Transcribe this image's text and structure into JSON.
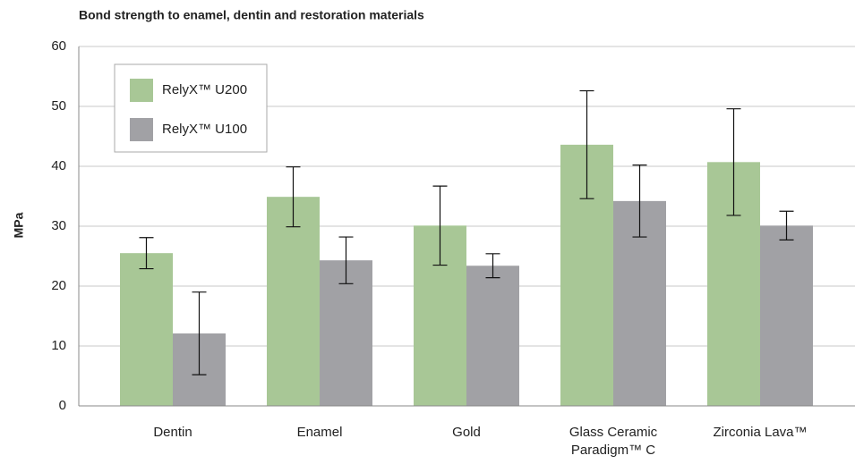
{
  "chart_data": {
    "type": "bar",
    "title": "Bond strength to enamel, dentin and restoration materials",
    "y_label": "MPa",
    "categories": [
      "Dentin",
      "Enamel",
      "Gold",
      "Glass Ceramic Paradigm™ C",
      "Zirconia Lava™"
    ],
    "series": [
      {
        "name": "RelyX™ U200",
        "color": "#a8c796",
        "values": [
          25.5,
          34.9,
          30.1,
          43.6,
          40.7
        ],
        "errors": [
          2.6,
          5.0,
          6.6,
          9.0,
          8.9
        ]
      },
      {
        "name": "RelyX™ U100",
        "color": "#a1a1a5",
        "values": [
          12.1,
          24.3,
          23.4,
          34.2,
          30.1
        ],
        "errors": [
          6.9,
          3.9,
          2.0,
          6.0,
          2.4
        ]
      }
    ],
    "ylim": [
      0,
      60
    ],
    "yticks": [
      0,
      10,
      20,
      30,
      40,
      50,
      60
    ],
    "grid": true,
    "legend": "upper left"
  }
}
